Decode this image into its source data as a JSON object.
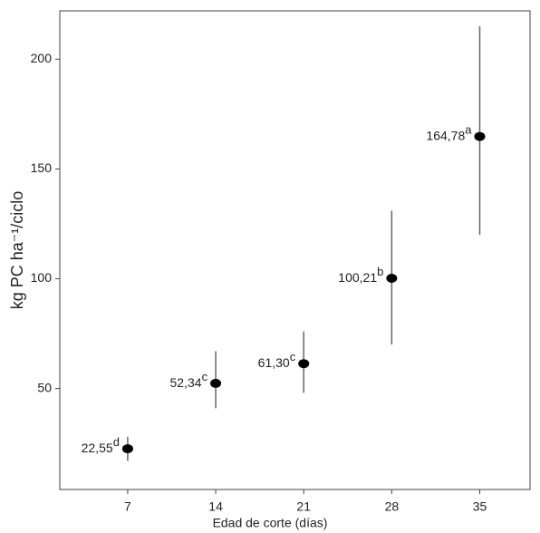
{
  "chart_data": {
    "type": "scatter",
    "xlabel": "Edad de corte (días)",
    "ylabel": "kg PC ha⁻¹/ciclo",
    "x": [
      7,
      14,
      21,
      28,
      35
    ],
    "values": [
      22.55,
      52.34,
      61.3,
      100.21,
      164.78
    ],
    "value_labels": [
      "22,55",
      "52,34",
      "61,30",
      "100,21",
      "164,78"
    ],
    "letters": [
      "d",
      "c",
      "c",
      "b",
      "a"
    ],
    "lower": [
      17,
      41,
      48,
      70,
      120
    ],
    "upper": [
      28,
      67,
      76,
      131,
      215
    ],
    "color": "#000000",
    "errorbar_color": "#666666",
    "xlim": [
      1.6,
      39
    ],
    "xticks": [
      7,
      14,
      21,
      28,
      35
    ],
    "ylim": [
      4,
      222
    ],
    "yticks": [
      50,
      100,
      150,
      200
    ]
  }
}
